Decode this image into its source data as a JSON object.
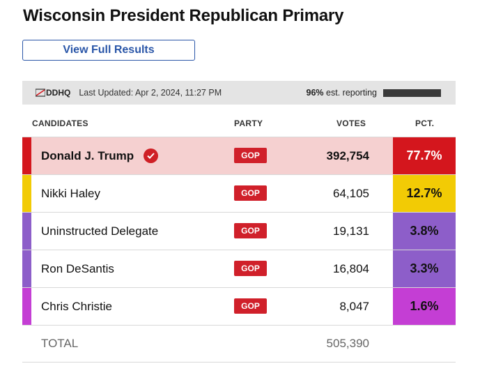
{
  "title": "Wisconsin President Republican Primary",
  "view_button": "View Full Results",
  "info_bar": {
    "logo_text": "DDHQ",
    "last_updated": "Last Updated: Apr 2, 2024, 11:27 PM",
    "reporting_pct": "96%",
    "reporting_label": " est. reporting",
    "reporting_fraction": 0.96
  },
  "headers": {
    "candidates": "CANDIDATES",
    "party": "PARTY",
    "votes": "VOTES",
    "pct": "PCT."
  },
  "candidates": [
    {
      "name": "Donald J. Trump",
      "party": "GOP",
      "votes": "392,754",
      "pct": "77.7%",
      "color": "#d4161d",
      "pct_text_color": "#ffffff",
      "row_bg": "#f5d0d0",
      "bold": true,
      "winner": true
    },
    {
      "name": "Nikki Haley",
      "party": "GOP",
      "votes": "64,105",
      "pct": "12.7%",
      "color": "#f2cb05",
      "pct_text_color": "#111111",
      "row_bg": "#ffffff",
      "bold": false,
      "winner": false
    },
    {
      "name": "Uninstructed Delegate",
      "party": "GOP",
      "votes": "19,131",
      "pct": "3.8%",
      "color": "#8d5ec9",
      "pct_text_color": "#111111",
      "row_bg": "#ffffff",
      "bold": false,
      "winner": false
    },
    {
      "name": "Ron DeSantis",
      "party": "GOP",
      "votes": "16,804",
      "pct": "3.3%",
      "color": "#8d5ec9",
      "pct_text_color": "#111111",
      "row_bg": "#ffffff",
      "bold": false,
      "winner": false
    },
    {
      "name": "Chris Christie",
      "party": "GOP",
      "votes": "8,047",
      "pct": "1.6%",
      "color": "#c43ed4",
      "pct_text_color": "#111111",
      "row_bg": "#ffffff",
      "bold": false,
      "winner": false
    }
  ],
  "total": {
    "label": "TOTAL",
    "votes": "505,390"
  },
  "colors": {
    "gop_badge": "#d0202a",
    "link": "#2a56a8",
    "check": "#cf2026"
  }
}
